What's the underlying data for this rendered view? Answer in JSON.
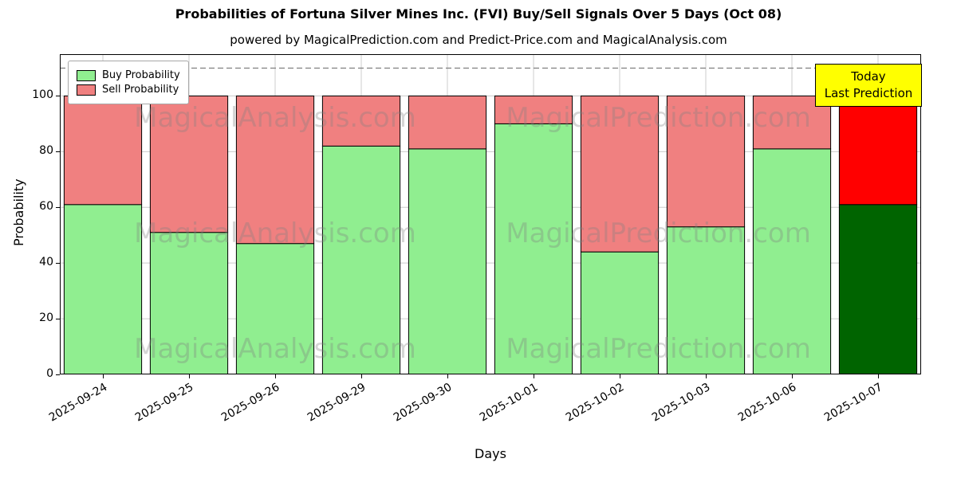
{
  "title": "Probabilities of Fortuna Silver Mines Inc. (FVI) Buy/Sell Signals Over 5 Days (Oct 08)",
  "subtitle": "powered by MagicalPrediction.com and Predict-Price.com and MagicalAnalysis.com",
  "watermarks": {
    "left": "MagicalAnalysis.com",
    "right": "MagicalPrediction.com"
  },
  "annotation": {
    "line1": "Today",
    "line2": "Last Prediction",
    "bg": "#ffff00"
  },
  "legend": [
    {
      "label": "Buy Probability",
      "color": "#90ee90"
    },
    {
      "label": "Sell Probability",
      "color": "#f08080"
    }
  ],
  "chart_data": {
    "type": "bar",
    "stacked": true,
    "title": "Probabilities of Fortuna Silver Mines Inc. (FVI) Buy/Sell Signals Over 5 Days (Oct 08)",
    "xlabel": "Days",
    "ylabel": "Probability",
    "categories": [
      "2025-09-24",
      "2025-09-25",
      "2025-09-26",
      "2025-09-29",
      "2025-09-30",
      "2025-10-01",
      "2025-10-02",
      "2025-10-03",
      "2025-10-06",
      "2025-10-07"
    ],
    "series": [
      {
        "name": "Buy Probability",
        "values": [
          61,
          51,
          47,
          82,
          81,
          90,
          44,
          53,
          81,
          61
        ],
        "color": "#90ee90",
        "last_color": "#006400"
      },
      {
        "name": "Sell Probability",
        "values": [
          39,
          49,
          53,
          18,
          19,
          10,
          56,
          47,
          19,
          39
        ],
        "color": "#f08080",
        "last_color": "#ff0000"
      }
    ],
    "ylim": [
      0,
      115
    ],
    "yticks": [
      0,
      20,
      40,
      60,
      80,
      100
    ],
    "dashed_line_y": 110,
    "grid": true,
    "legend_position": "upper left",
    "bar_edge_color": "#000000",
    "grid_color": "#cccccc",
    "dashed_line_color": "#7f7f7f"
  }
}
